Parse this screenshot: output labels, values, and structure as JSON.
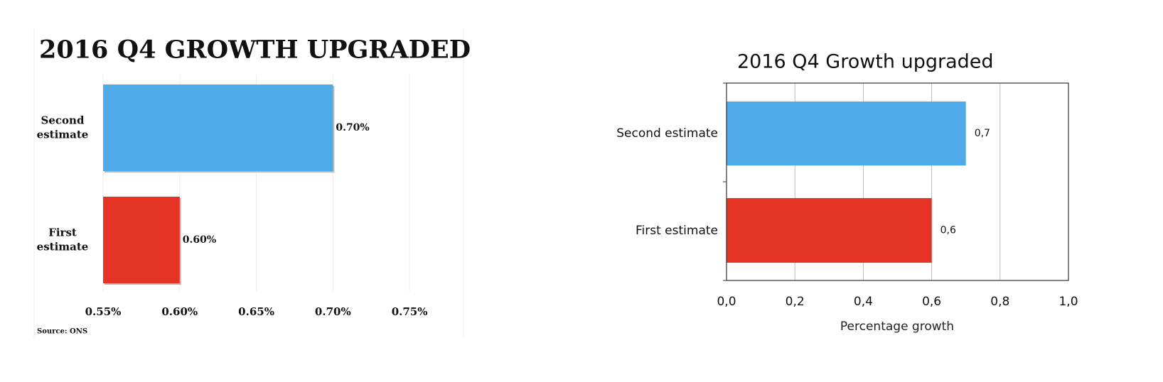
{
  "chart_data": [
    {
      "type": "barh",
      "title": "2016 Q4 GROWTH UPGRADED",
      "categories": [
        "Second estimate",
        "First estimate"
      ],
      "values": [
        0.7,
        0.6
      ],
      "value_labels": [
        "0.70%",
        "0.60%"
      ],
      "colors": [
        "#4eaae8",
        "#e53424"
      ],
      "xlim": [
        0.55,
        0.775
      ],
      "xticks": [
        {
          "value": 0.55,
          "label": "0.55%"
        },
        {
          "value": 0.6,
          "label": "0.60%"
        },
        {
          "value": 0.65,
          "label": "0.65%"
        },
        {
          "value": 0.7,
          "label": "0.70%"
        },
        {
          "value": 0.75,
          "label": "0.75%"
        }
      ],
      "grid": true,
      "note": "Source: ONS"
    },
    {
      "type": "barh",
      "title": "2016 Q4 Growth upgraded",
      "categories": [
        "Second estimate",
        "First estimate"
      ],
      "values": [
        0.7,
        0.6
      ],
      "value_labels": [
        "0,7",
        "0,6"
      ],
      "colors": [
        "#4eaae8",
        "#e53424"
      ],
      "xlabel": "Percentage growth",
      "xlim": [
        0,
        1
      ],
      "xticks": [
        {
          "value": 0,
          "label": "0,0"
        },
        {
          "value": 0.2,
          "label": "0,2"
        },
        {
          "value": 0.4,
          "label": "0,4"
        },
        {
          "value": 0.6,
          "label": "0,6"
        },
        {
          "value": 0.8,
          "label": "0,8"
        },
        {
          "value": 1,
          "label": "1,0"
        }
      ],
      "grid": true
    }
  ]
}
